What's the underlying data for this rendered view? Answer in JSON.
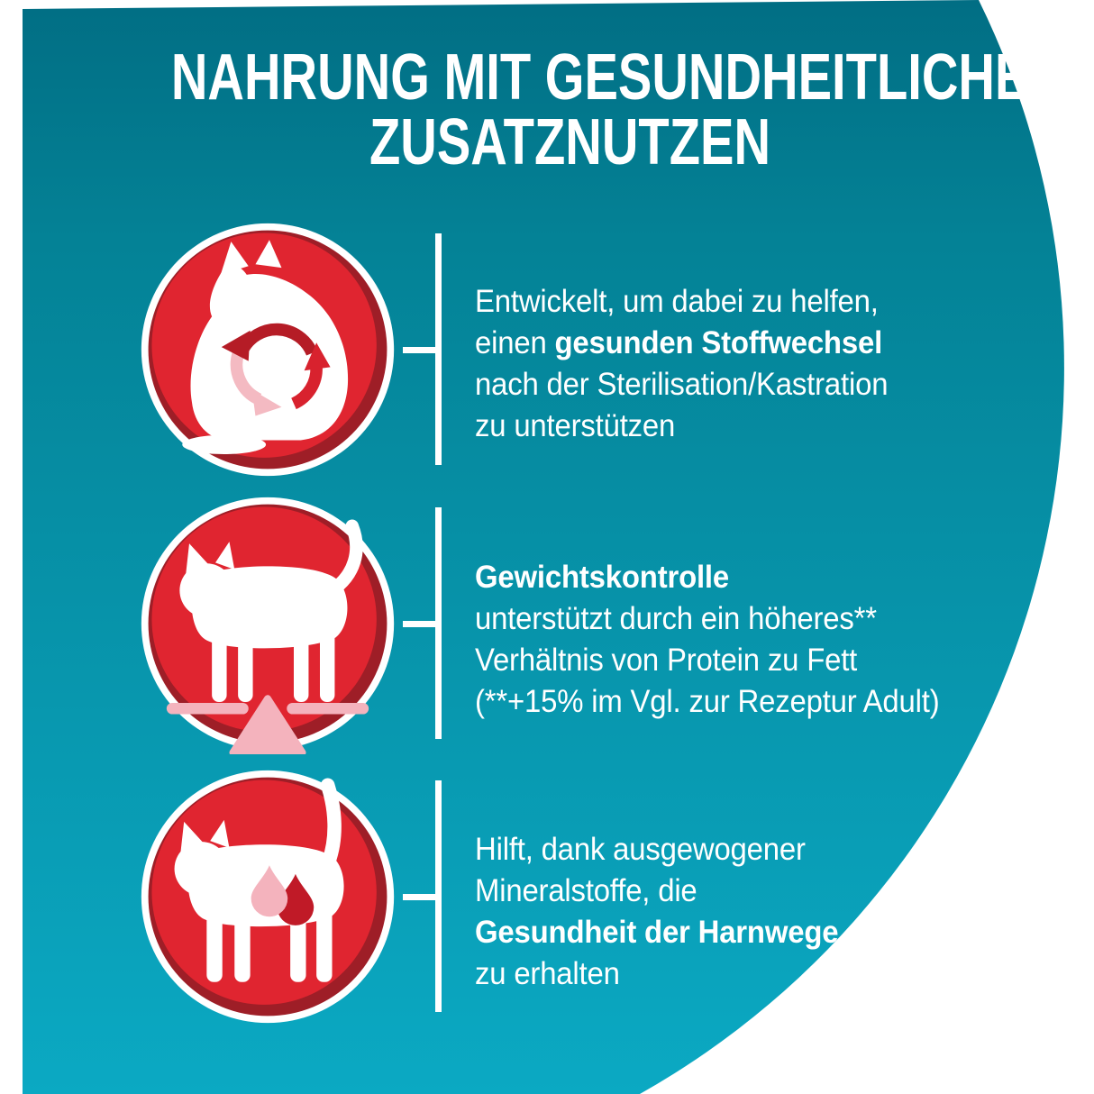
{
  "title": {
    "line1": "NAHRUNG MIT GESUNDHEITLICHEM",
    "line2": "ZUSATZNUTZEN"
  },
  "benefits": [
    {
      "icon": "metabolism-cat-icon",
      "lines": [
        [
          {
            "t": "Entwickelt, um dabei zu helfen,"
          }
        ],
        [
          {
            "t": "einen "
          },
          {
            "t": "gesunden Stoffwechsel",
            "b": true
          }
        ],
        [
          {
            "t": "nach der Sterilisation/Kastration"
          }
        ],
        [
          {
            "t": "zu unterstützen"
          }
        ]
      ]
    },
    {
      "icon": "weight-control-cat-icon",
      "lines": [
        [
          {
            "t": "Gewichtskontrolle",
            "b": true
          }
        ],
        [
          {
            "t": "unterstützt durch ein höheres**"
          }
        ],
        [
          {
            "t": "Verhältnis von Protein zu Fett"
          }
        ],
        [
          {
            "t": "(**+15% im Vgl. zur Rezeptur Adult)"
          }
        ]
      ]
    },
    {
      "icon": "urinary-health-cat-icon",
      "lines": [
        [
          {
            "t": "Hilft, dank ausgewogener"
          }
        ],
        [
          {
            "t": "Mineralstoffe, die"
          }
        ],
        [
          {
            "t": "Gesundheit der Harnwege",
            "b": true
          }
        ],
        [
          {
            "t": "zu erhalten"
          }
        ]
      ]
    }
  ],
  "colors": {
    "teal_top": "#016e84",
    "teal_mid": "#048296",
    "teal_bottom": "#0ba9c3",
    "icon_red": "#e02530",
    "icon_shadow_red": "#9e1e27",
    "arrow_dark_red": "#b51c26",
    "accent_pink": "#f4b3bd",
    "text_white": "#ffffff"
  }
}
